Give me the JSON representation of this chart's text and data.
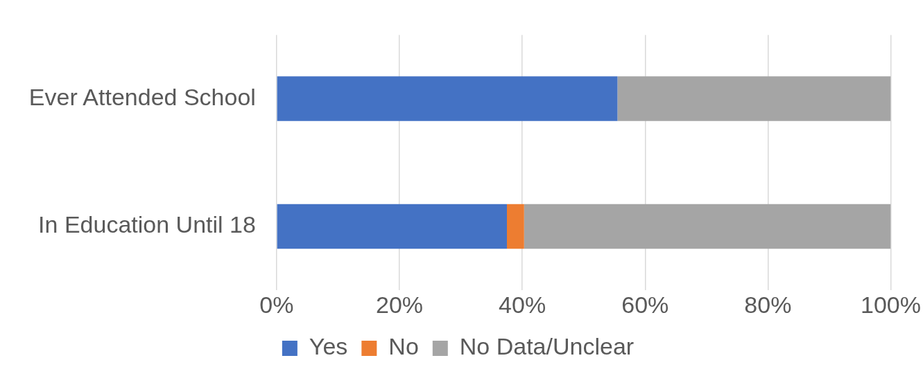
{
  "chart_data": {
    "type": "bar",
    "orientation": "horizontal",
    "stacked": true,
    "categories": [
      "Ever Attended School",
      "In Education Until 18"
    ],
    "series": [
      {
        "name": "Yes",
        "color": "#4472c4",
        "values": [
          55.5,
          37.5
        ]
      },
      {
        "name": "No",
        "color": "#ed7d31",
        "values": [
          0,
          2.8
        ]
      },
      {
        "name": "No Data/Unclear",
        "color": "#a5a5a5",
        "values": [
          44.5,
          59.7
        ]
      }
    ],
    "xlim": [
      0,
      100
    ],
    "xticks": [
      {
        "value": 0,
        "label": "0%"
      },
      {
        "value": 20,
        "label": "20%"
      },
      {
        "value": 40,
        "label": "40%"
      },
      {
        "value": 60,
        "label": "60%"
      },
      {
        "value": 80,
        "label": "80%"
      },
      {
        "value": 100,
        "label": "100%"
      }
    ],
    "grid": "x",
    "legend": "bottom"
  }
}
